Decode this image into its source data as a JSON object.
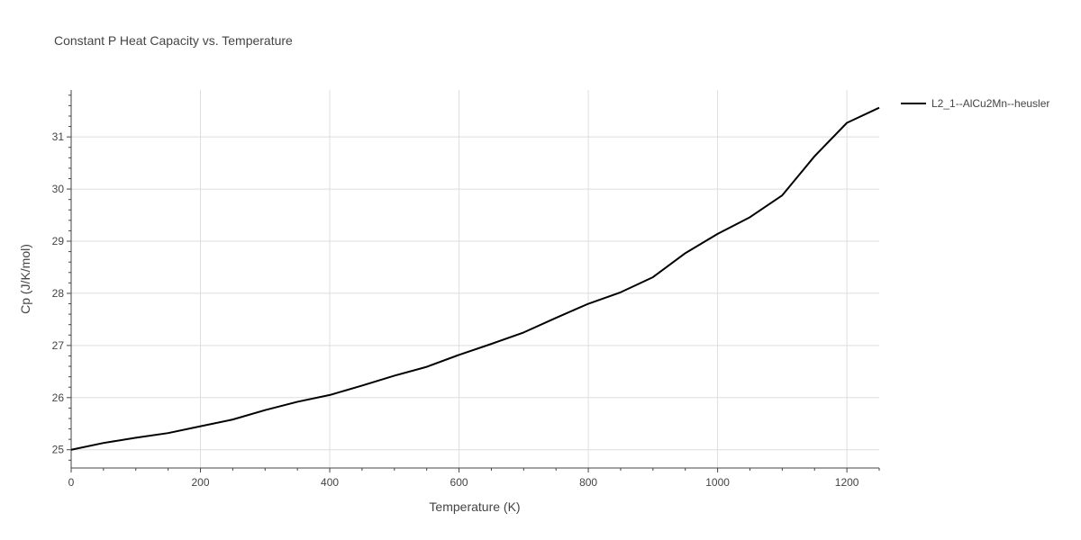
{
  "chart_data": {
    "type": "line",
    "title": "Constant P Heat Capacity vs. Temperature",
    "xlabel": "Temperature (K)",
    "ylabel": "Cp (J/K/mol)",
    "xlim": [
      0,
      1250
    ],
    "ylim": [
      24.65,
      31.9
    ],
    "x_ticks": [
      0,
      200,
      400,
      600,
      800,
      1000,
      1200
    ],
    "y_ticks": [
      25,
      26,
      27,
      28,
      29,
      30,
      31
    ],
    "grid": true,
    "legend_position": "top-right",
    "series": [
      {
        "name": "L2_1--AlCu2Mn--heusler",
        "color": "#000000",
        "x": [
          0,
          50,
          100,
          150,
          200,
          250,
          300,
          350,
          400,
          450,
          500,
          550,
          600,
          650,
          700,
          750,
          800,
          850,
          900,
          950,
          1000,
          1050,
          1100,
          1150,
          1200,
          1250
        ],
        "y": [
          25.0,
          25.13,
          25.23,
          25.32,
          25.45,
          25.58,
          25.76,
          25.92,
          26.05,
          26.23,
          26.42,
          26.59,
          26.82,
          27.03,
          27.25,
          27.53,
          27.8,
          28.02,
          28.31,
          28.77,
          29.14,
          29.46,
          29.88,
          30.63,
          31.27,
          31.56
        ]
      }
    ]
  }
}
